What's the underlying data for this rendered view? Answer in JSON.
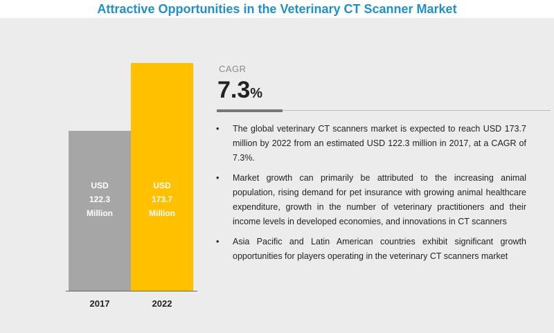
{
  "title": "Attractive Opportunities in the Veterinary CT Scanner Market",
  "cagr": {
    "label": "CAGR",
    "value": "7.3",
    "unit": "%"
  },
  "bullets": [
    "The global veterinary CT scanners market is expected to reach USD 173.7 million by 2022 from an estimated USD 122.3 million in 2017, at a CAGR of 7.3%.",
    "Market growth can primarily be attributed to the increasing animal population, rising demand for pet insurance with growing animal healthcare expenditure, growth in the number of veterinary practitioners and their income levels in developed economies, and innovations in CT scanners",
    "Asia Pacific and Latin American countries exhibit significant growth opportunities for players operating in the veterinary CT scanners market"
  ],
  "bullet_symbol": "•",
  "colors": {
    "title": "#1f8fce",
    "bar_2017": "#a6a6a6",
    "bar_2022": "#ffc000",
    "panel": "#ececec"
  },
  "chart_data": {
    "type": "bar",
    "categories": [
      "2017",
      "2022"
    ],
    "values": [
      122.3,
      173.7
    ],
    "bar_labels": [
      "USD\n122.3\nMillion",
      "USD\n173.7\nMillion"
    ],
    "ylim": [
      0,
      185
    ],
    "grid": false,
    "legend": "none",
    "xlabel": "",
    "ylabel": ""
  }
}
